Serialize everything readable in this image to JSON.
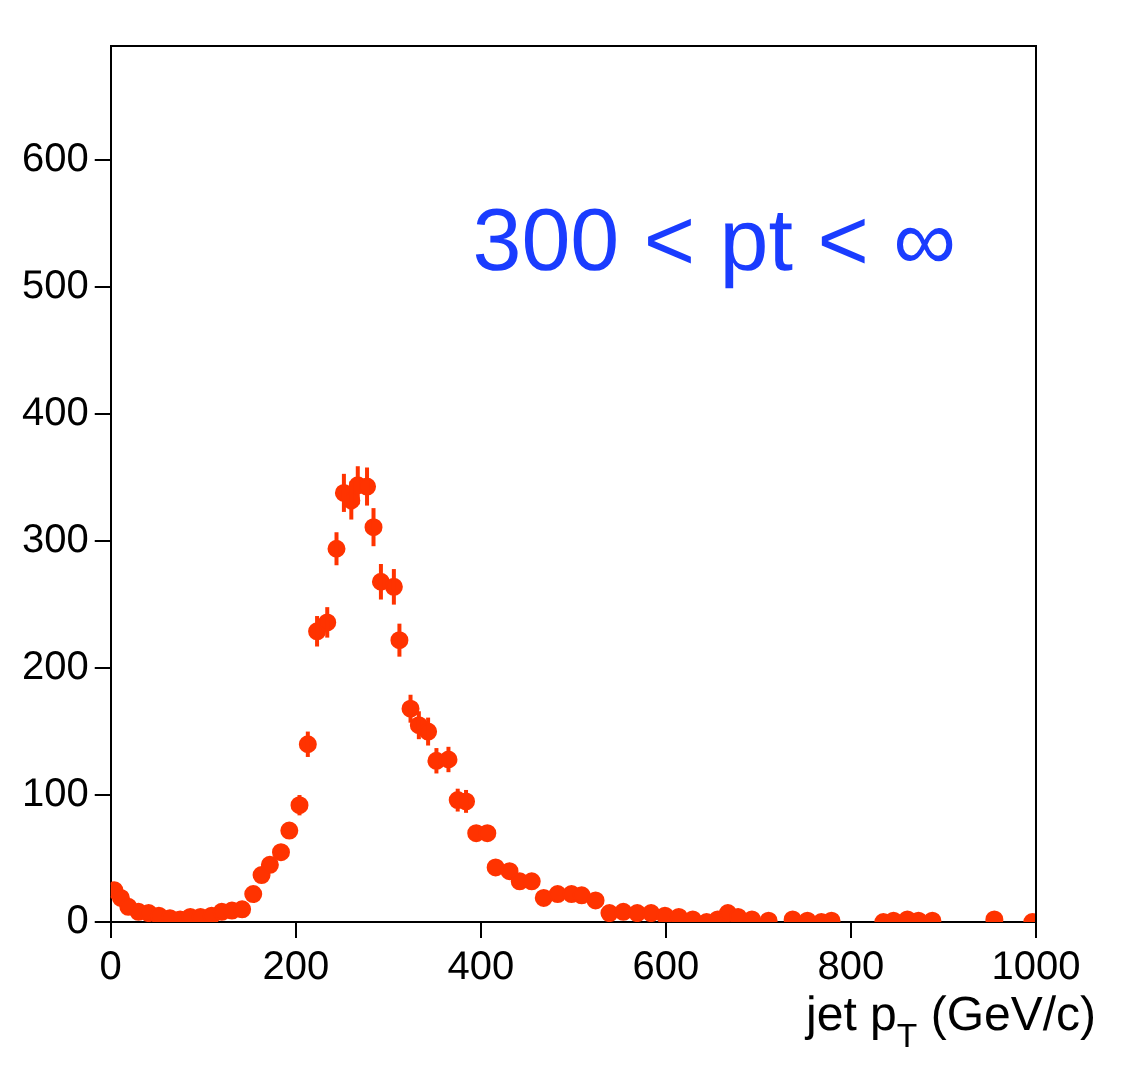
{
  "chart_data": {
    "type": "scatter",
    "xlabel": "jet p$_{T}$ (GeV/c)",
    "annotations": [
      "300 < pt < ∞"
    ],
    "marker": "circle",
    "grid": false,
    "legend": false,
    "xlim": [
      0,
      1000
    ],
    "xticks": [
      0,
      200,
      400,
      600,
      800,
      1000
    ],
    "ylim": [
      0,
      690
    ],
    "yticks": [
      0,
      100,
      200,
      300,
      400,
      500,
      600
    ],
    "series": [
      {
        "color": "#ff3300",
        "x": [
          4,
          11,
          19,
          30,
          41,
          52,
          64,
          75,
          86,
          97,
          109,
          120,
          131,
          142,
          154,
          163,
          172,
          184,
          193,
          204,
          213,
          223,
          234,
          244,
          252,
          260,
          267,
          277,
          284,
          292,
          306,
          312,
          324,
          333,
          343,
          352,
          365,
          375,
          384,
          395,
          407,
          416,
          431,
          442,
          455,
          468,
          483,
          498,
          509,
          524,
          539,
          554,
          569,
          584,
          599,
          614,
          629,
          644,
          656,
          667,
          678,
          693,
          711,
          737,
          753,
          768,
          779,
          835,
          846,
          861,
          873,
          888,
          955,
          996
        ],
        "values": [
          25,
          19,
          12,
          8,
          7,
          5,
          3,
          2,
          4,
          4,
          5,
          8,
          9,
          10,
          22,
          37,
          45,
          55,
          72,
          92,
          140,
          229,
          236,
          294,
          338,
          332,
          344,
          343,
          311,
          268,
          264,
          222,
          168,
          155,
          150,
          127,
          128,
          96,
          95,
          70,
          70,
          43,
          40,
          32,
          32,
          19,
          22,
          22,
          21,
          17,
          7,
          8,
          7,
          7,
          5,
          4,
          2,
          0,
          2,
          7,
          4,
          2,
          1,
          2,
          1,
          0,
          1,
          0,
          1,
          2,
          1,
          1,
          2,
          0
        ],
        "errors": [
          null,
          null,
          null,
          null,
          null,
          null,
          null,
          null,
          null,
          null,
          null,
          null,
          null,
          null,
          null,
          null,
          null,
          null,
          null,
          8,
          10,
          12,
          12,
          13,
          15,
          15,
          15,
          15,
          15,
          14,
          14,
          13,
          11,
          11,
          11,
          10,
          10,
          9,
          9,
          null,
          null,
          null,
          null,
          null,
          null,
          null,
          null,
          null,
          null,
          null,
          null,
          null,
          null,
          null,
          null,
          null,
          null,
          null,
          null,
          null,
          null,
          null,
          null,
          null,
          null,
          null,
          null,
          null,
          null,
          null,
          null,
          null,
          null,
          null
        ]
      }
    ]
  }
}
